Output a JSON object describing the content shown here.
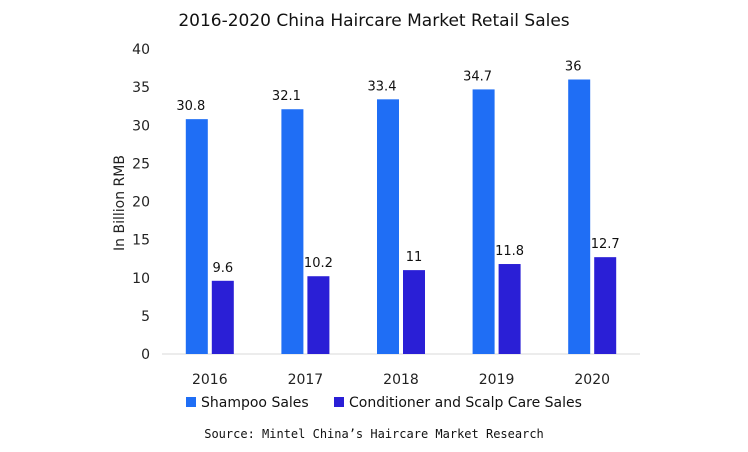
{
  "chart_data": {
    "type": "bar",
    "title": "2016-2020 China Haircare Market Retail Sales",
    "xlabel": "",
    "ylabel": "In Billion RMB",
    "ylim": [
      0,
      40
    ],
    "yticks": [
      0,
      5,
      10,
      15,
      20,
      25,
      30,
      35,
      40
    ],
    "categories": [
      "2016",
      "2017",
      "2018",
      "2019",
      "2020"
    ],
    "series": [
      {
        "name": "Shampoo Sales",
        "color": "#1f6ef5",
        "values": [
          30.8,
          32.1,
          33.4,
          34.7,
          36
        ],
        "labels": [
          "30.8",
          "32.1",
          "33.4",
          "34.7",
          "36"
        ]
      },
      {
        "name": "Conditioner and Scalp Care Sales",
        "color": "#2a1fd6",
        "values": [
          9.6,
          10.2,
          11,
          11.8,
          12.7
        ],
        "labels": [
          "9.6",
          "10.2",
          "11",
          "11.8",
          "12.7"
        ]
      }
    ],
    "legend_position": "bottom",
    "grid": false,
    "source": "Source: Mintel China’s Haircare Market Research"
  }
}
